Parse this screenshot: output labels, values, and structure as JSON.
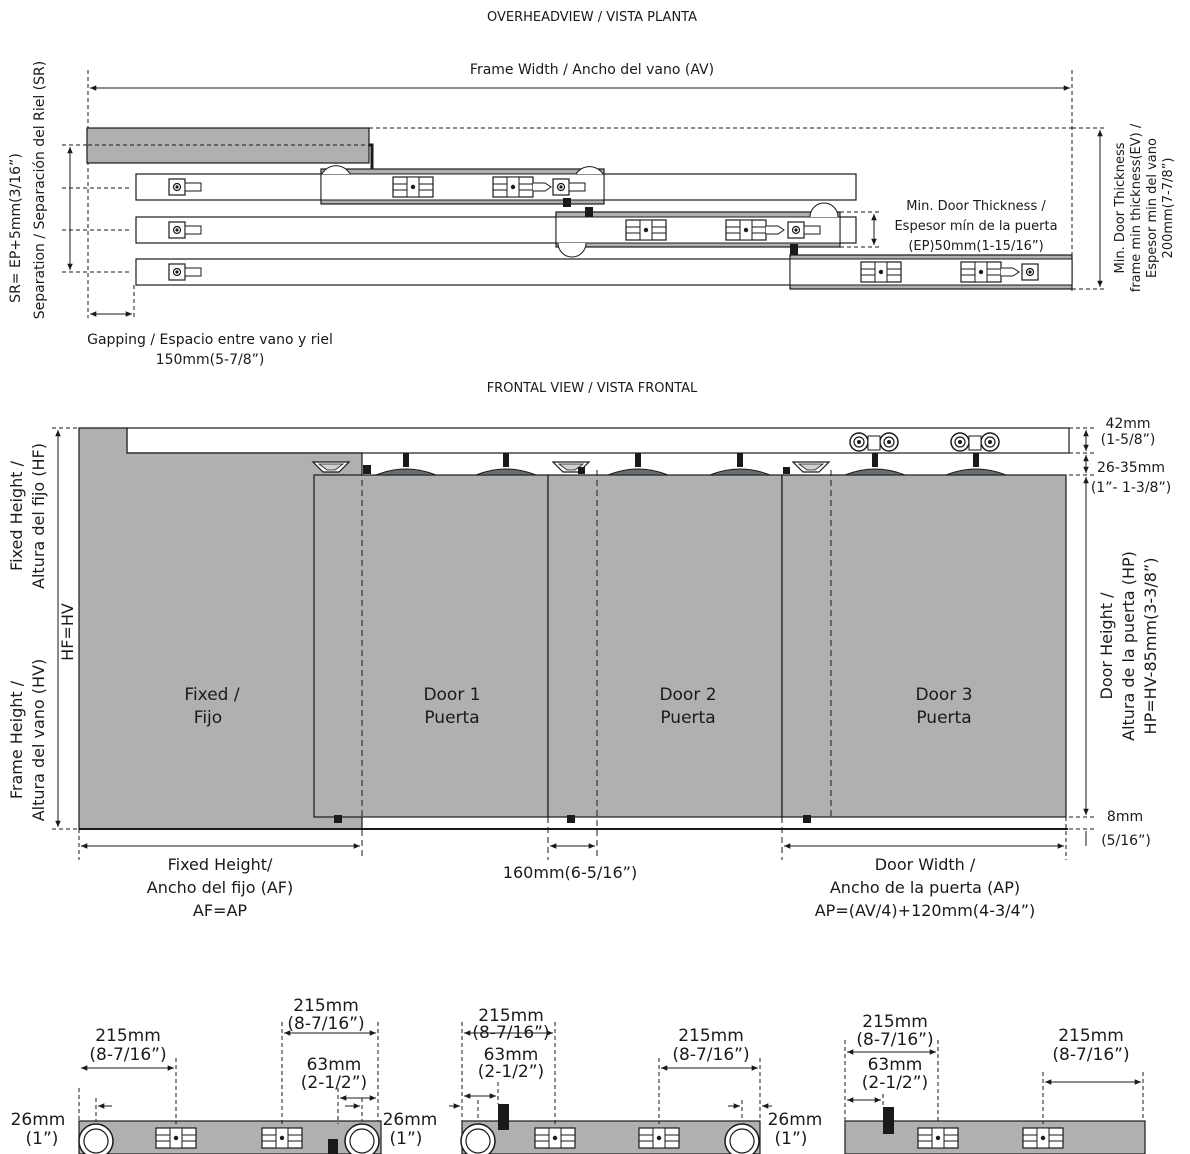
{
  "titles": {
    "overhead": "OVERHEADVIEW / VISTA PLANTA",
    "frontal": "FRONTAL VIEW / VISTA FRONTAL"
  },
  "overhead": {
    "frame_width": "Frame Width / Ancho del vano (AV)",
    "sr_formula": "SR= EP+5mm(3/16”)",
    "sr_label": "Separation / Separación del Riel (SR)",
    "gapping_line1": "Gapping / Espacio entre vano y riel",
    "gapping_line2": "150mm(5-7/8”)",
    "min_door_line1": "Min. Door Thickness /",
    "min_door_line2": "Espesor mín de la puerta",
    "min_door_line3": "(EP)50mm(1-15/16”)",
    "min_frame_line1": "Min. Door Thickness",
    "min_frame_line2": "frame min thickness(EV) /",
    "min_frame_line3": "Espesor min del vano",
    "min_frame_line4": "200mm(7-7/8”)"
  },
  "frontal": {
    "fixed_height_line1": "Fixed Height /",
    "fixed_height_line2": "Altura del fijo (HF)",
    "hf_hv": "HF=HV",
    "frame_height_line1": "Frame Height /",
    "frame_height_line2": "Altura del vano (HV)",
    "fixed_panel_line1": "Fixed /",
    "fixed_panel_line2": "Fijo",
    "door1_line1": "Door 1",
    "door1_line2": "Puerta",
    "door2_line1": "Door 2",
    "door2_line2": "Puerta",
    "door3_line1": "Door 3",
    "door3_line2": "Puerta",
    "rail_mm": "42mm",
    "rail_in": "(1-5/8”)",
    "gap_mm": "26-35mm",
    "gap_in": "(1”- 1-3/8”)",
    "door_height_line1": "Door Height /",
    "door_height_line2": "Altura de la puerta (HP)",
    "door_height_line3": "HP=HV-85mm(3-3/8”)",
    "bottom_mm": "8mm",
    "bottom_in": "(5/16”)",
    "fixed_width_line1": "Fixed Height/",
    "fixed_width_line2": "Ancho del fijo (AF)",
    "fixed_width_line3": "AF=AP",
    "overlap": "160mm(6-5/16”)",
    "door_width_line1": "Door Width /",
    "door_width_line2": "Ancho de la puerta (AP)",
    "door_width_line3": "AP=(AV/4)+120mm(4-3/4”)"
  },
  "details": {
    "d215_mm": "215mm",
    "d215_in": "(8-7/16”)",
    "d63_mm": "63mm",
    "d63_in": "(2-1/2”)",
    "d26_mm": "26mm",
    "d26_in": "(1”)"
  },
  "colors": {
    "panel_gray": "#aeb0b1",
    "line": "#1a1a1a",
    "background": "#ffffff"
  }
}
